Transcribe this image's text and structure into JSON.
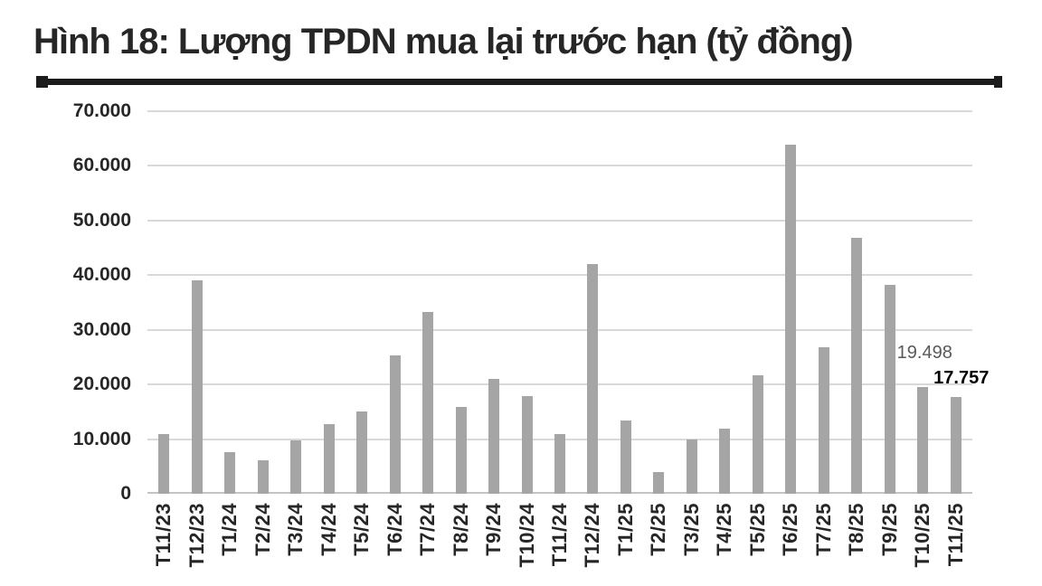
{
  "figure": {
    "title": "Hình 18: Lượng TPDN mua lại trước hạn (tỷ đồng)"
  },
  "chart_data": {
    "type": "bar",
    "title": "Hình 18: Lượng TPDN mua lại trước hạn (tỷ đồng)",
    "categories": [
      "T11/23",
      "T12/23",
      "T1/24",
      "T2/24",
      "T3/24",
      "T4/24",
      "T5/24",
      "T6/24",
      "T7/24",
      "T8/24",
      "T9/24",
      "T10/24",
      "T11/24",
      "T12/24",
      "T1/25",
      "T2/25",
      "T3/25",
      "T4/25",
      "T5/25",
      "T6/25",
      "T7/25",
      "T8/25",
      "T9/25",
      "T10/25",
      "T11/25"
    ],
    "values": [
      11000,
      39100,
      7600,
      6100,
      9800,
      12800,
      15000,
      25400,
      33300,
      15900,
      21100,
      17800,
      10900,
      42000,
      13400,
      3900,
      9900,
      12000,
      21700,
      63800,
      26800,
      46900,
      38300,
      19498,
      17757
    ],
    "ylim": [
      0,
      70000
    ],
    "yticks": [
      {
        "value": 70000,
        "label": "70.000"
      },
      {
        "value": 60000,
        "label": "60.000"
      },
      {
        "value": 50000,
        "label": "50.000"
      },
      {
        "value": 40000,
        "label": "40.000"
      },
      {
        "value": 30000,
        "label": "30.000"
      },
      {
        "value": 20000,
        "label": "20.000"
      },
      {
        "value": 10000,
        "label": "10.000"
      },
      {
        "value": 0,
        "label": "0"
      }
    ],
    "grid": true,
    "legend": false,
    "bar_color": "#a5a5a5",
    "gridline_color": "#d9d9d9",
    "axis_text_color": "#262626",
    "annotations": [
      {
        "text": "19.498",
        "category": "T10/25",
        "value": 19498,
        "emphasis": false,
        "color": "#595959"
      },
      {
        "text": "17.757",
        "category": "T11/25",
        "value": 17757,
        "emphasis": true,
        "color": "#000000"
      }
    ]
  }
}
